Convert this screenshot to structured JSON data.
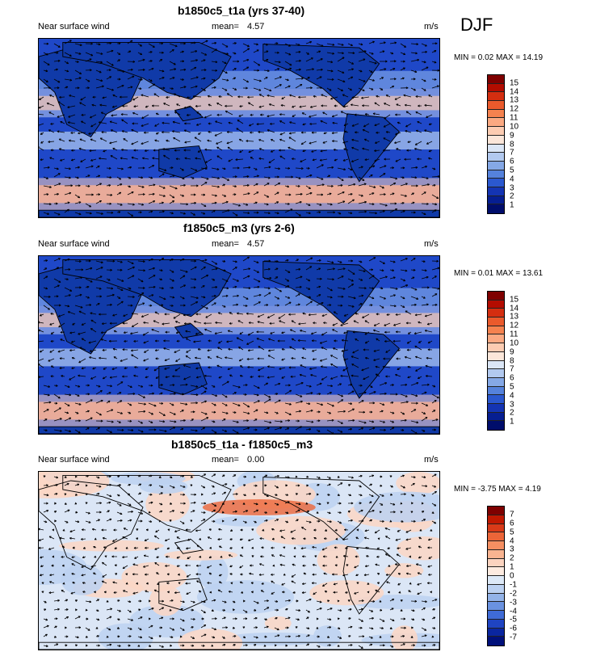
{
  "season": "DJF",
  "panels": [
    {
      "title": "b1850c5_t1a (yrs 37-40)",
      "label_left": "Near surface wind",
      "mean_label": "mean=",
      "mean_value": "4.57",
      "units": "m/s",
      "minmax": "MIN =  0.02 MAX = 14.19",
      "colorbar_labels": [
        "15",
        "14",
        "13",
        "12",
        "11",
        "10",
        "9",
        "8",
        "7",
        "6",
        "5",
        "4",
        "3",
        "2",
        "1"
      ],
      "colorbar_colors": [
        "#7f0000",
        "#b30c00",
        "#d42e10",
        "#ea5a2c",
        "#f5824f",
        "#fba982",
        "#fcccb2",
        "#fbe6d9",
        "#dbe6f6",
        "#b2c9ef",
        "#85a8e6",
        "#5582dc",
        "#2b58cf",
        "#1434b3",
        "#061e91",
        "#000d6b"
      ]
    },
    {
      "title": "f1850c5_m3 (yrs 2-6)",
      "label_left": "Near surface wind",
      "mean_label": "mean=",
      "mean_value": "4.57",
      "units": "m/s",
      "minmax": "MIN =  0.01 MAX = 13.61",
      "colorbar_labels": [
        "15",
        "14",
        "13",
        "12",
        "11",
        "10",
        "9",
        "8",
        "7",
        "6",
        "5",
        "4",
        "3",
        "2",
        "1"
      ],
      "colorbar_colors": [
        "#7f0000",
        "#b30c00",
        "#d42e10",
        "#ea5a2c",
        "#f5824f",
        "#fba982",
        "#fcccb2",
        "#fbe6d9",
        "#dbe6f6",
        "#b2c9ef",
        "#85a8e6",
        "#5582dc",
        "#2b58cf",
        "#1434b3",
        "#061e91",
        "#000d6b"
      ]
    },
    {
      "title": "b1850c5_t1a - f1850c5_m3",
      "label_left": "Near surface wind",
      "mean_label": "mean=",
      "mean_value": "0.00",
      "units": "m/s",
      "minmax": "MIN = -3.75 MAX =  4.19",
      "colorbar_labels": [
        "7",
        "6",
        "5",
        "4",
        "3",
        "2",
        "1",
        "0",
        "-1",
        "-2",
        "-3",
        "-4",
        "-5",
        "-6",
        "-7"
      ],
      "colorbar_colors": [
        "#7f0000",
        "#c01800",
        "#d93a18",
        "#ec6538",
        "#f58f62",
        "#f9b491",
        "#fbd3bf",
        "#fdebe0",
        "#dde9f7",
        "#bcd1f1",
        "#93b3e8",
        "#6a92e0",
        "#3f6bd6",
        "#1f44c2",
        "#0a26a0",
        "#00107a"
      ]
    }
  ]
}
